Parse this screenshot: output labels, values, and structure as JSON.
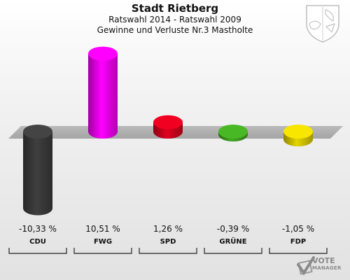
{
  "chart_data": {
    "type": "bar",
    "title": "Stadt Rietberg",
    "subtitle_line1": "Ratswahl 2014 - Ratswahl 2009",
    "subtitle_line2": "Gewinne und Verluste Nr.3 Mastholte",
    "categories": [
      "CDU",
      "FWG",
      "SPD",
      "GRÜNE",
      "FDP"
    ],
    "values": [
      -10.33,
      10.51,
      1.26,
      -0.39,
      -1.05
    ],
    "value_labels": [
      "-10,33 %",
      "10,51 %",
      "1,26 %",
      "-0,39 %",
      "-1,05 %"
    ],
    "colors": [
      "#3f3f3f",
      "#ff00ff",
      "#e0001f",
      "#44aa22",
      "#e6d500"
    ],
    "ylim": [
      -11,
      11
    ],
    "legend": "none",
    "grid": false
  },
  "logo": {
    "line1": "VOTE",
    "line2": "MANAGER"
  },
  "icons": {
    "coat_of_arms": "coat-of-arms-icon",
    "vote_check": "vote-check-icon"
  }
}
